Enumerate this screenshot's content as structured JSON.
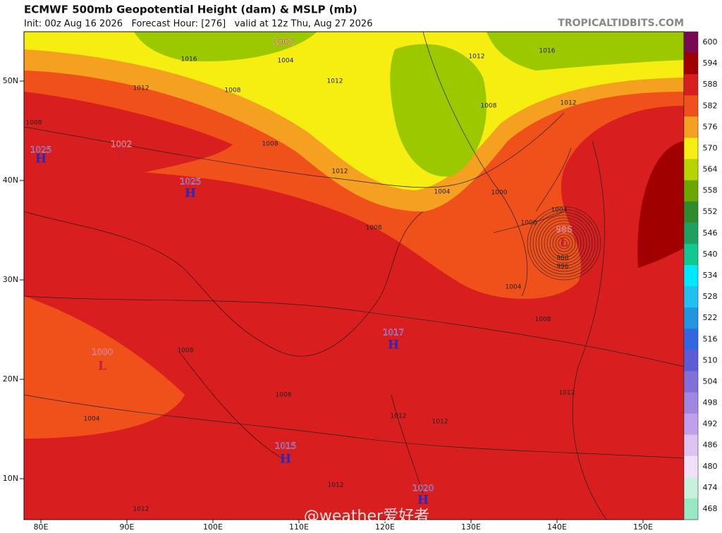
{
  "header": {
    "title": "ECMWF 500mb Geopotential Height (dam) & MSLP (mb)",
    "subtitle": "Init: 00z Aug 16 2026   Forecast Hour: [276]   valid at 12z Thu, Aug 27 2026",
    "site": "TROPICALTIDBITS.COM"
  },
  "colorbar": {
    "levels": [
      600,
      594,
      588,
      582,
      576,
      570,
      564,
      558,
      552,
      546,
      540,
      534,
      528,
      522,
      516,
      510,
      504,
      498,
      492,
      486,
      480,
      474,
      468
    ],
    "colors": [
      "#7a0a50",
      "#a00000",
      "#d81e1e",
      "#f0501a",
      "#f5a020",
      "#f5ee10",
      "#b8d400",
      "#6aa800",
      "#2e8b2e",
      "#20a060",
      "#10c890",
      "#00e8ff",
      "#20c0f0",
      "#2096e0",
      "#3068e0",
      "#5c5cd8",
      "#8070d8",
      "#a088e0",
      "#c0a0e8",
      "#dcc4f0",
      "#f0e0f8",
      "#c8f0dc",
      "#98e8c4"
    ]
  },
  "lat_labels": [
    "50N",
    "40N",
    "30N",
    "20N",
    "10N"
  ],
  "lon_labels": [
    "80E",
    "90E",
    "100E",
    "110E",
    "120E",
    "130E",
    "140E",
    "150E"
  ],
  "centers": [
    {
      "letter": "L",
      "value": 1002
    },
    {
      "letter": "H",
      "value": 1025
    },
    {
      "letter": "L",
      "value": 1002
    },
    {
      "letter": "H",
      "value": 1025
    },
    {
      "letter": "L",
      "value": 986
    },
    {
      "letter": "L",
      "value": 1000
    },
    {
      "letter": "H",
      "value": 1017
    },
    {
      "letter": "H",
      "value": 1015
    },
    {
      "letter": "H",
      "value": 1020
    }
  ],
  "isobar_labels": [
    1016,
    1004,
    1008,
    1012,
    1012,
    1012,
    1016,
    1008,
    1012,
    1008,
    1008,
    1012,
    1004,
    1000,
    1004,
    1000,
    1008,
    1004,
    1008,
    1012,
    1008,
    1008,
    1004,
    1012,
    1012,
    1012,
    1012,
    988,
    996
  ],
  "watermark": "@weather爱好者"
}
